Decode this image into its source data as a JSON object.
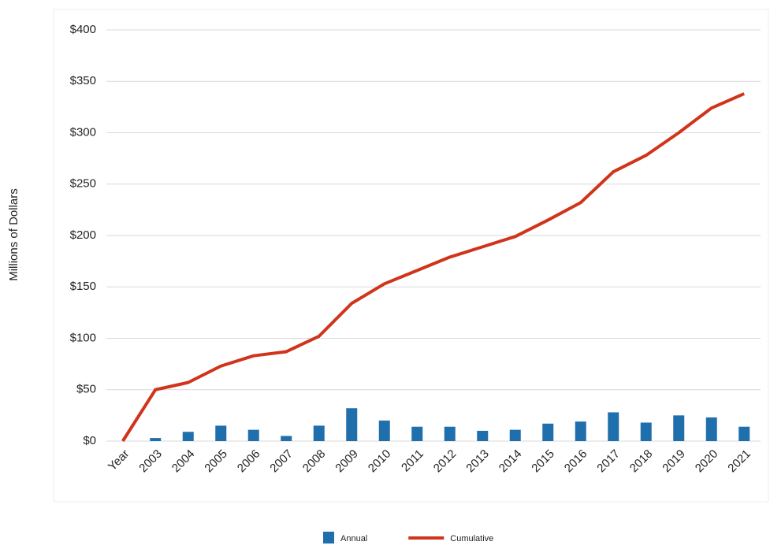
{
  "chart_data": {
    "type": "bar-line",
    "y_label": "Millions of Dollars",
    "categories": [
      "Year",
      "2003",
      "2004",
      "2005",
      "2006",
      "2007",
      "2008",
      "2009",
      "2010",
      "2011",
      "2012",
      "2013",
      "2014",
      "2015",
      "2016",
      "2017",
      "2018",
      "2019",
      "2020",
      "2021"
    ],
    "series": [
      {
        "name": "Annual",
        "kind": "bar",
        "color": "#1f6fad",
        "values": [
          null,
          3,
          9,
          15,
          11,
          5,
          15,
          32,
          20,
          14,
          14,
          10,
          11,
          17,
          19,
          28,
          18,
          25,
          23,
          14
        ]
      },
      {
        "name": "Cumulative",
        "kind": "line",
        "color": "#d0341a",
        "values": [
          0,
          50,
          57,
          73,
          83,
          87,
          102,
          134,
          153,
          166,
          179,
          189,
          199,
          215,
          232,
          262,
          278,
          300,
          324,
          338
        ]
      }
    ],
    "ylim": [
      0,
      400
    ],
    "yticks": [
      {
        "value": 0,
        "label": "$0"
      },
      {
        "value": 50,
        "label": "$50"
      },
      {
        "value": 100,
        "label": "$100"
      },
      {
        "value": 150,
        "label": "$150"
      },
      {
        "value": 200,
        "label": "$200"
      },
      {
        "value": 250,
        "label": "$250"
      },
      {
        "value": 300,
        "label": "$300"
      },
      {
        "value": 350,
        "label": "$350"
      },
      {
        "value": 400,
        "label": "$400"
      }
    ],
    "grid": true,
    "legend": "bottom"
  }
}
